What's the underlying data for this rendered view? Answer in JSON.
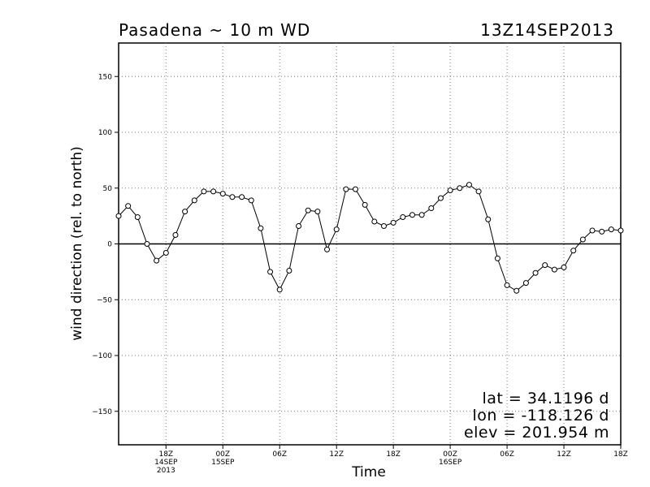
{
  "header": {
    "title": "Pasadena ~ 10 m WD",
    "timestamp": "13Z14SEP2013"
  },
  "info": {
    "lat": "lat = 34.1196 d",
    "lon": "lon = -118.126 d",
    "elev": "elev = 201.954 m"
  },
  "chart_data": {
    "type": "line",
    "title": "Pasadena ~ 10 m WD",
    "xlabel": "Time",
    "ylabel": "wind direction (rel. to north)",
    "xlim": [
      13,
      66
    ],
    "ylim": [
      -180,
      180
    ],
    "y_ticks": [
      -150,
      -100,
      -50,
      0,
      50,
      100,
      150
    ],
    "x_ticks": [
      {
        "hour": 18,
        "lines": [
          "18Z",
          "14SEP",
          "2013"
        ]
      },
      {
        "hour": 24,
        "lines": [
          "00Z",
          "15SEP"
        ]
      },
      {
        "hour": 30,
        "lines": [
          "06Z"
        ]
      },
      {
        "hour": 36,
        "lines": [
          "12Z"
        ]
      },
      {
        "hour": 42,
        "lines": [
          "18Z"
        ]
      },
      {
        "hour": 48,
        "lines": [
          "00Z",
          "16SEP"
        ]
      },
      {
        "hour": 54,
        "lines": [
          "06Z"
        ]
      },
      {
        "hour": 60,
        "lines": [
          "12Z"
        ]
      },
      {
        "hour": 66,
        "lines": [
          "18Z"
        ]
      }
    ],
    "grid": true,
    "zero_line": true,
    "series": [
      {
        "x": [
          13,
          14,
          15,
          16,
          17,
          18,
          19,
          20,
          21,
          22,
          23,
          24,
          25,
          26,
          27,
          28,
          29,
          30,
          31,
          32,
          33,
          34,
          35,
          36,
          37,
          38,
          39,
          40,
          41,
          42,
          43,
          44,
          45,
          46,
          47,
          48,
          49,
          50,
          51,
          52,
          53,
          54,
          55,
          56,
          57,
          58,
          59,
          60,
          61,
          62,
          63,
          64,
          65,
          66
        ],
        "values": [
          25,
          34,
          24,
          0,
          -15,
          -8,
          8,
          29,
          39,
          47,
          47,
          45,
          42,
          42,
          39,
          14,
          -25,
          -41,
          -24,
          16,
          30,
          29,
          -5,
          13,
          49,
          49,
          35,
          20,
          16,
          19,
          24,
          26,
          26,
          32,
          41,
          48,
          50,
          53,
          47,
          22,
          -13,
          -37,
          -42,
          -35,
          -26,
          -19,
          -23,
          -21,
          -6,
          4,
          12,
          11,
          13,
          12
        ]
      }
    ]
  }
}
